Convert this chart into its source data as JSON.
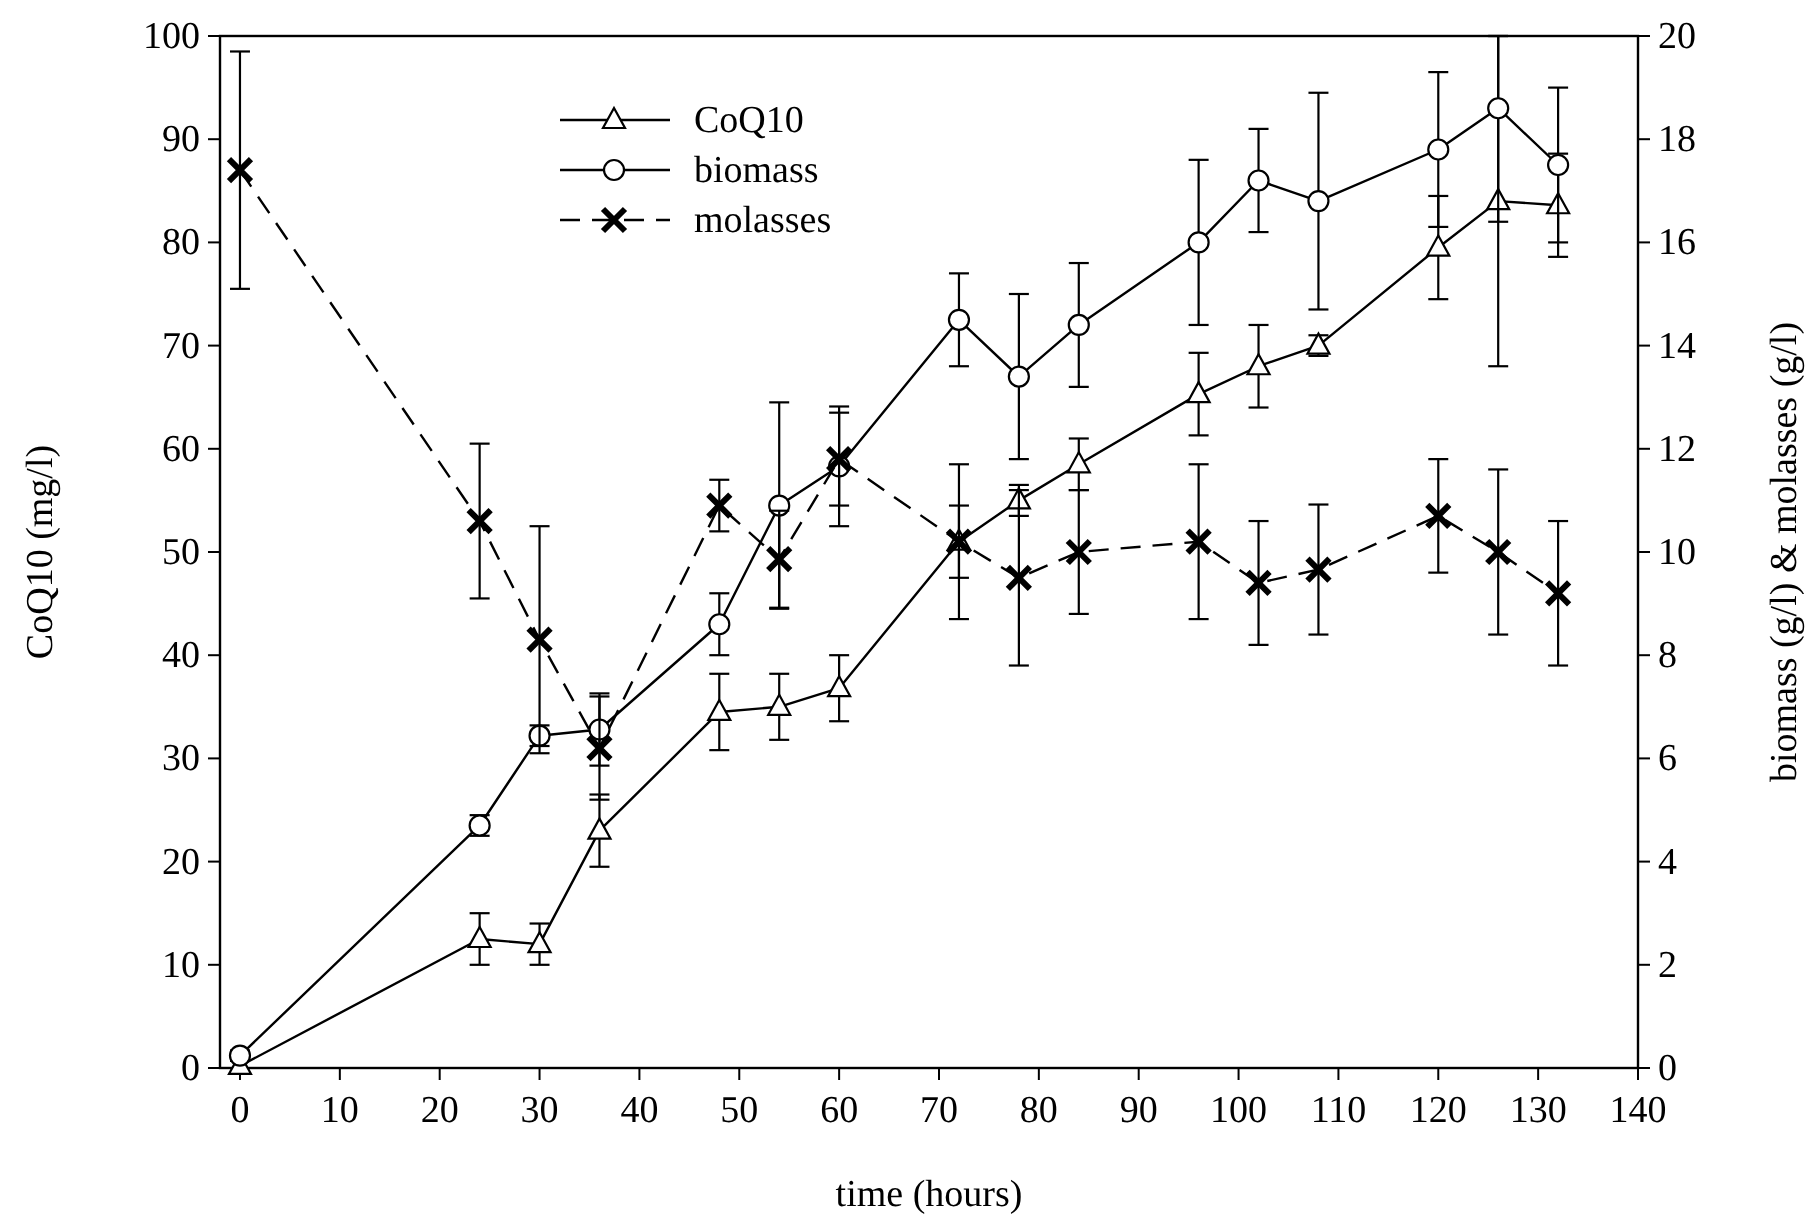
{
  "chart_data": {
    "type": "line",
    "xlabel": "time (hours)",
    "ylabel": "CoQ10 (mg/l)",
    "y2label": "biomass (g/l) & molasses (g/l)",
    "x": [
      0,
      24,
      30,
      36,
      48,
      54,
      60,
      72,
      78,
      84,
      96,
      102,
      108,
      120,
      126,
      132
    ],
    "series": [
      {
        "name": "CoQ10",
        "color": "#000000",
        "marker": "triangle",
        "line_style": "solid",
        "values": [
          0.2,
          12.5,
          12,
          23,
          34.5,
          35,
          36.8,
          51,
          55,
          58.5,
          65.3,
          68,
          70,
          79.5,
          84,
          83.6
        ],
        "errors": [
          0.5,
          2.5,
          2,
          3.5,
          3.7,
          3.2,
          3.2,
          3.5,
          1.5,
          2.5,
          4,
          4,
          1,
          5,
          16,
          5
        ]
      },
      {
        "name": "biomass",
        "color": "#000000",
        "marker": "circle",
        "line_style": "solid",
        "axis": "y2",
        "values": [
          0.24,
          4.7,
          6.44,
          6.56,
          8.6,
          10.9,
          11.66,
          14.5,
          13.4,
          14.4,
          16,
          17.2,
          16.8,
          17.8,
          18.6,
          17.5
        ],
        "errors": [
          0.1,
          0.2,
          0.2,
          0.7,
          0.6,
          2,
          1.16,
          0.9,
          1.6,
          1.2,
          1.6,
          1,
          2.1,
          1.5,
          [
            16.4,
            20
          ],
          1.5
        ]
      },
      {
        "name": "molasses",
        "color": "#000000",
        "marker": "cross",
        "line_style": "dashed",
        "axis": "y2",
        "values": [
          17.4,
          10.6,
          8.3,
          6.2,
          10.9,
          9.86,
          11.8,
          10.2,
          9.5,
          10,
          10.2,
          9.4,
          9.66,
          10.7,
          10,
          9.2
        ],
        "errors": [
          2.3,
          1.5,
          2.2,
          1,
          0.5,
          0.94,
          0.9,
          1.5,
          1.7,
          1.2,
          1.5,
          1.2,
          1.26,
          1.1,
          1.6,
          1.4
        ]
      }
    ],
    "xlim": [
      -2,
      140
    ],
    "xticks": [
      0,
      10,
      20,
      30,
      40,
      50,
      60,
      70,
      80,
      90,
      100,
      110,
      120,
      130,
      140
    ],
    "ylim": [
      0,
      100
    ],
    "yticks": [
      0,
      10,
      20,
      30,
      40,
      50,
      60,
      70,
      80,
      90,
      100
    ],
    "y2lim": [
      0,
      20
    ],
    "y2ticks": [
      0,
      2,
      4,
      6,
      8,
      10,
      12,
      14,
      16,
      18,
      20
    ],
    "legend": "top left",
    "grid": false
  }
}
